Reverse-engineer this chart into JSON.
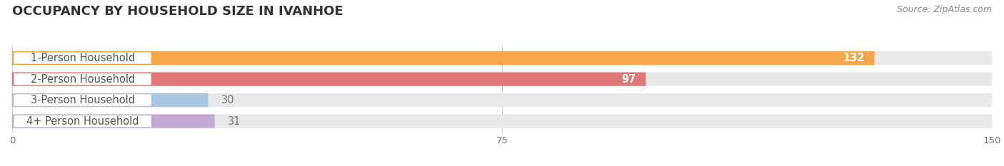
{
  "title": "OCCUPANCY BY HOUSEHOLD SIZE IN IVANHOE",
  "source": "Source: ZipAtlas.com",
  "categories": [
    "1-Person Household",
    "2-Person Household",
    "3-Person Household",
    "4+ Person Household"
  ],
  "values": [
    132,
    97,
    30,
    31
  ],
  "bar_colors": [
    "#F5A54A",
    "#E07878",
    "#A8C4E0",
    "#C4A8D4"
  ],
  "bar_bg_color": "#E8E8E8",
  "xlim": [
    0,
    150
  ],
  "xticks": [
    0,
    75,
    150
  ],
  "label_fontsize": 10.5,
  "value_fontsize": 10.5,
  "title_fontsize": 13,
  "source_fontsize": 9,
  "background_color": "#FFFFFF",
  "bar_height": 0.62,
  "label_pill_color": "#FFFFFF",
  "label_text_color": "#555555",
  "value_color_inside": "#FFFFFF",
  "value_color_outside": "#777777"
}
